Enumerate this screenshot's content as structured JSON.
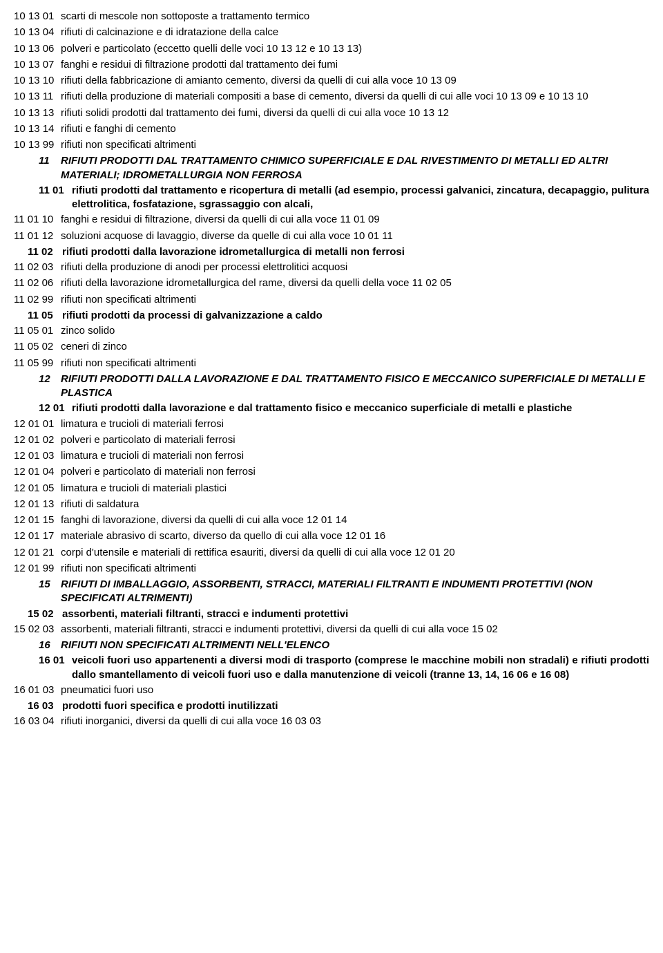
{
  "entries": [
    {
      "type": "item",
      "code": "10 13 01",
      "text": "scarti di mescole non sottoposte a trattamento termico"
    },
    {
      "type": "item",
      "code": "10 13 04",
      "text": "rifiuti di calcinazione e di idratazione della calce"
    },
    {
      "type": "item",
      "code": "10 13 06",
      "text": "polveri e particolato (eccetto quelli delle voci 10 13 12 e 10 13 13)"
    },
    {
      "type": "item",
      "code": "10 13 07",
      "text": "fanghi e residui di filtrazione prodotti dal trattamento dei fumi"
    },
    {
      "type": "item",
      "code": "10 13 10",
      "text": "rifiuti della fabbricazione di amianto cemento, diversi da quelli di cui alla voce 10 13 09"
    },
    {
      "type": "item",
      "code": "10 13 11",
      "text": "rifiuti della produzione di materiali compositi a base di cemento, diversi da quelli di cui alle voci 10 13 09 e 10 13 10"
    },
    {
      "type": "item",
      "code": "10 13 13",
      "text": "rifiuti solidi prodotti dal trattamento dei fumi, diversi da quelli di cui alla voce 10 13 12"
    },
    {
      "type": "item",
      "code": "10 13 14",
      "text": "rifiuti e fanghi di cemento"
    },
    {
      "type": "item",
      "code": "10 13 99",
      "text": "rifiuti non specificati altrimenti"
    },
    {
      "type": "main",
      "num": "11",
      "text": "RIFIUTI PRODOTTI DAL TRATTAMENTO CHIMICO SUPERFICIALE E DAL RIVESTIMENTO DI METALLI ED ALTRI MATERIALI; IDROMETALLURGIA NON FERROSA"
    },
    {
      "type": "sub",
      "num": "11 01",
      "text": "rifiuti prodotti dal trattamento e ricopertura di metalli (ad esempio, processi galvanici, zincatura, decapaggio, pulitura elettrolitica, fosfatazione, sgrassaggio con alcali,"
    },
    {
      "type": "item",
      "code": "11 01 10",
      "text": "fanghi e residui di filtrazione, diversi da quelli di cui alla voce 11 01 09"
    },
    {
      "type": "item",
      "code": "11 01 12",
      "text": "soluzioni acquose di lavaggio, diverse da quelle di cui alla voce 10 01 11"
    },
    {
      "type": "sub2",
      "num": "11 02",
      "text": "rifiuti prodotti dalla lavorazione idrometallurgica di metalli non ferrosi"
    },
    {
      "type": "item",
      "code": "11 02 03",
      "text": "rifiuti della produzione di anodi per processi elettrolitici acquosi"
    },
    {
      "type": "item",
      "code": "11 02 06",
      "text": "rifiuti della lavorazione idrometallurgica del rame, diversi da quelli della voce 11 02 05"
    },
    {
      "type": "item",
      "code": "11 02 99",
      "text": "rifiuti non specificati altrimenti"
    },
    {
      "type": "sub2",
      "num": "11 05",
      "text": "rifiuti prodotti da processi di galvanizzazione a caldo"
    },
    {
      "type": "item",
      "code": "11 05 01",
      "text": "zinco solido"
    },
    {
      "type": "item",
      "code": "11 05 02",
      "text": "ceneri di zinco"
    },
    {
      "type": "item",
      "code": "11 05 99",
      "text": "rifiuti non specificati altrimenti"
    },
    {
      "type": "main",
      "num": "12",
      "text": "RIFIUTI PRODOTTI DALLA LAVORAZIONE E DAL TRATTAMENTO FISICO E MECCANICO SUPERFICIALE DI METALLI E PLASTICA"
    },
    {
      "type": "sub",
      "num": "12 01",
      "text": "rifiuti prodotti dalla lavorazione e dal trattamento fisico e meccanico superficiale di metalli e plastiche"
    },
    {
      "type": "item",
      "code": "12 01 01",
      "text": "limatura e trucioli di materiali ferrosi"
    },
    {
      "type": "item",
      "code": "12 01 02",
      "text": "polveri e particolato di materiali ferrosi"
    },
    {
      "type": "item",
      "code": "12 01 03",
      "text": "limatura e trucioli di materiali non ferrosi"
    },
    {
      "type": "item",
      "code": "12 01 04",
      "text": "polveri e particolato di materiali non ferrosi"
    },
    {
      "type": "item",
      "code": "12 01 05",
      "text": "limatura e trucioli di materiali plastici"
    },
    {
      "type": "item",
      "code": "12 01 13",
      "text": "rifiuti di saldatura"
    },
    {
      "type": "item",
      "code": "12 01 15",
      "text": "fanghi di lavorazione, diversi da quelli di cui alla voce 12 01 14"
    },
    {
      "type": "item",
      "code": "12 01 17",
      "text": "materiale abrasivo di scarto, diverso da quello di cui alla voce 12 01 16"
    },
    {
      "type": "item",
      "code": "12 01 21",
      "text": "corpi d'utensile e materiali di rettifica esauriti, diversi da quelli di cui alla voce 12 01 20"
    },
    {
      "type": "item",
      "code": "12 01 99",
      "text": "rifiuti non specificati altrimenti"
    },
    {
      "type": "main",
      "num": "15",
      "text": "RIFIUTI DI IMBALLAGGIO, ASSORBENTI, STRACCI, MATERIALI FILTRANTI E INDUMENTI PROTETTIVI (NON SPECIFICATI ALTRIMENTI)"
    },
    {
      "type": "sub2",
      "num": "15 02",
      "text": "assorbenti, materiali filtranti, stracci e indumenti protettivi"
    },
    {
      "type": "item",
      "code": "15 02 03",
      "text": "assorbenti, materiali filtranti, stracci e indumenti protettivi, diversi da quelli di cui alla voce 15 02"
    },
    {
      "type": "main",
      "num": "16",
      "text": "RIFIUTI NON SPECIFICATI ALTRIMENTI NELL'ELENCO"
    },
    {
      "type": "sub",
      "num": "16 01",
      "text": "veicoli fuori uso appartenenti a diversi modi di trasporto (comprese le macchine mobili non stradali) e rifiuti prodotti dallo smantellamento di veicoli fuori uso e dalla manutenzione di veicoli (tranne 13, 14, 16 06 e 16 08)",
      "justify": true
    },
    {
      "type": "item",
      "code": "16 01 03",
      "text": "pneumatici fuori uso"
    },
    {
      "type": "sub2",
      "num": "16 03",
      "text": "prodotti fuori specifica e prodotti inutilizzati"
    },
    {
      "type": "item",
      "code": "16 03 04",
      "text": "rifiuti inorganici, diversi da quelli di cui alla voce 16 03 03"
    }
  ]
}
